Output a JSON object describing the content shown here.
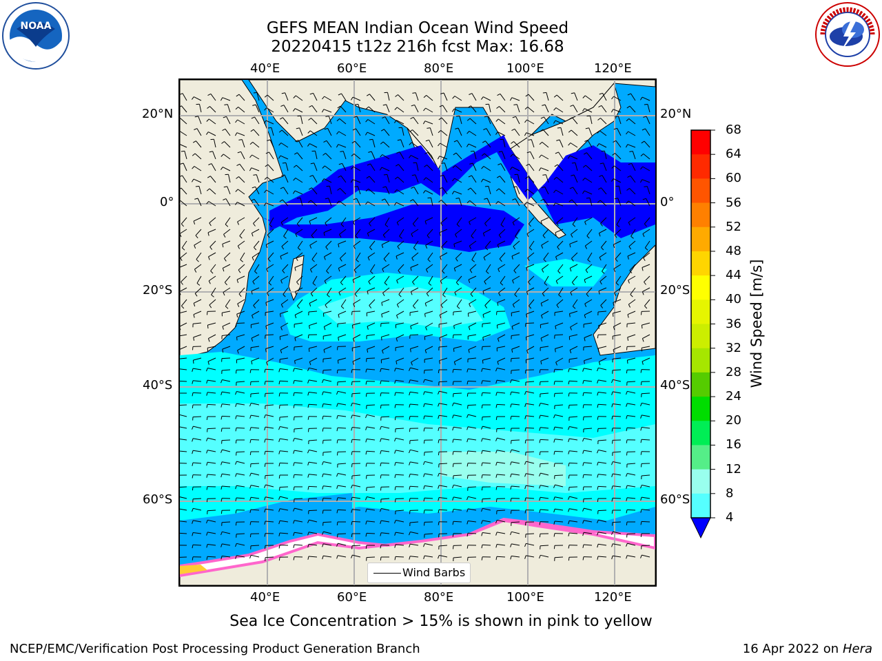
{
  "title": {
    "line1": "GEFS MEAN Indian Ocean Wind Speed",
    "line2": "20220415 t12z 216h fcst   Max: 16.68"
  },
  "axes": {
    "lon_labels": [
      "40°E",
      "60°E",
      "80°E",
      "100°E",
      "120°E"
    ],
    "lat_labels": [
      "20°N",
      "0°",
      "20°S",
      "40°S",
      "60°S"
    ]
  },
  "colorbar": {
    "label": "Wind Speed [m/s]",
    "ticks": [
      "68",
      "64",
      "60",
      "56",
      "52",
      "48",
      "44",
      "40",
      "36",
      "32",
      "28",
      "24",
      "20",
      "16",
      "12",
      "8",
      "4"
    ],
    "colors": [
      "#ff0000",
      "#ff2a00",
      "#ff5500",
      "#ff8000",
      "#ffaa00",
      "#ffd500",
      "#ffff00",
      "#e6f500",
      "#ccee00",
      "#a6e600",
      "#55cc00",
      "#00dd00",
      "#00ee55",
      "#55ee88",
      "#99ffee",
      "#55ffff",
      "#00ffff",
      "#00aaff"
    ],
    "extend_color": "#0000ff"
  },
  "legend": {
    "label": "Wind Barbs"
  },
  "caption": "Sea Ice Concentration > 15% is shown in pink to yellow",
  "footer": {
    "left": "NCEP/EMC/Verification Post Processing Product Generation Branch",
    "right_prefix": "16 Apr 2022 on",
    "right_host": "Hera"
  },
  "logos": {
    "noaa": "NOAA",
    "nws": "NATIONAL WEATHER SERVICE"
  },
  "map": {
    "colors": {
      "land": "#efecdc",
      "calm": "#0000ff",
      "c4_8": "#00aaff",
      "c8_12": "#00ffff",
      "c12_16": "#55ffff",
      "c16_20": "#99ffee",
      "ice": "#ffffff",
      "ice_edge": "#ff66cc",
      "ice_yellow": "#ffcc33",
      "grid": "#b0b0b0"
    }
  }
}
